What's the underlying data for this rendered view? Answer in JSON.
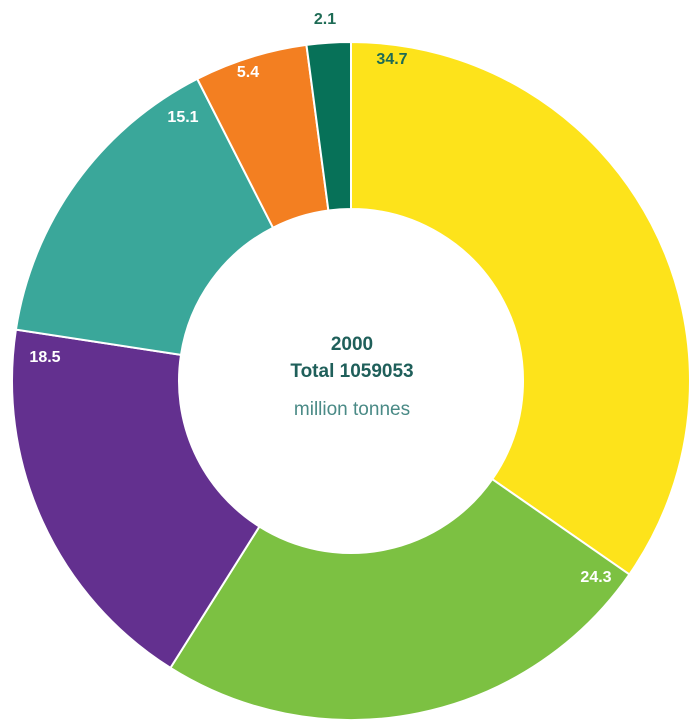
{
  "chart_data": {
    "type": "donut",
    "center_text": [
      "2000",
      "Total 1059053",
      "million tonnes"
    ],
    "values": [
      34.7,
      24.3,
      18.5,
      15.1,
      5.4,
      2.1
    ],
    "colors": [
      "#fde31b",
      "#7cc142",
      "#63308f",
      "#3aa79a",
      "#f37f21",
      "#077158"
    ]
  }
}
